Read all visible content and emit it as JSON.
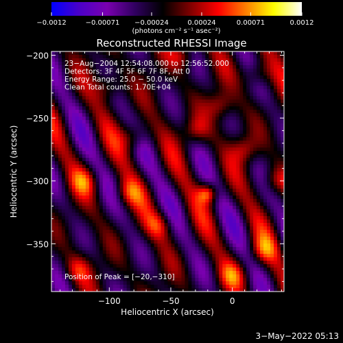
{
  "chart_data": {
    "type": "heatmap",
    "title": "Reconstructed RHESSI Image",
    "xlabel": "Heliocentric X (arcsec)",
    "ylabel": "Heliocentric Y (arcsec)",
    "xlim": [
      -147,
      42
    ],
    "ylim": [
      -388,
      -197
    ],
    "x_ticks": [
      -100,
      -50,
      0
    ],
    "y_ticks": [
      -200,
      -250,
      -300,
      -350
    ],
    "x_tick_labels": [
      "−100",
      "−50",
      "0"
    ],
    "y_tick_labels": [
      "−200",
      "−250",
      "−300",
      "−350"
    ],
    "colorbar": {
      "range": [
        -0.0012,
        0.0012
      ],
      "tick_values": [
        -0.0012,
        -0.00071,
        -0.00024,
        0.00024,
        0.00071,
        0.0012
      ],
      "tick_labels": [
        "−0.0012",
        "−0.00071",
        "−0.00024",
        "0.00024",
        "0.00071",
        "0.0012"
      ],
      "units": "(photons cm⁻² s⁻¹ asec⁻²)",
      "colors": [
        "#0000ff",
        "#4b00c8",
        "#7a00b0",
        "#300060",
        "#000000",
        "#800000",
        "#ff0000",
        "#ff8000",
        "#ffff00",
        "#ffffff"
      ]
    },
    "annotations": [
      "23−Aug−2004 12:54:08.000 to 12:56:52.000",
      "Detectors: 3F 4F 5F 6F 7F 8F, Att 0",
      "Energy Range: 25.0 − 50.0 keV",
      "Clean    Total counts: 1.70E+04"
    ],
    "peak_label": "Position of Peak = [−20,−310]",
    "peak": [
      -20,
      -310
    ],
    "pattern": {
      "stripe_direction_deg": 62,
      "description": "diagonal stripe pattern"
    },
    "bright_spots": [
      [
        -20,
        -310
      ],
      [
        -10,
        -240
      ],
      [
        20,
        -215
      ],
      [
        -100,
        -225
      ],
      [
        -80,
        -265
      ],
      [
        10,
        -275
      ],
      [
        -40,
        -200
      ],
      [
        -120,
        -300
      ],
      [
        -60,
        -335
      ],
      [
        25,
        -355
      ],
      [
        0,
        -375
      ],
      [
        -125,
        -370
      ],
      [
        -30,
        -260
      ],
      [
        -85,
        -310
      ],
      [
        35,
        -300
      ]
    ]
  },
  "footer_date": "3−May−2022 05:13"
}
